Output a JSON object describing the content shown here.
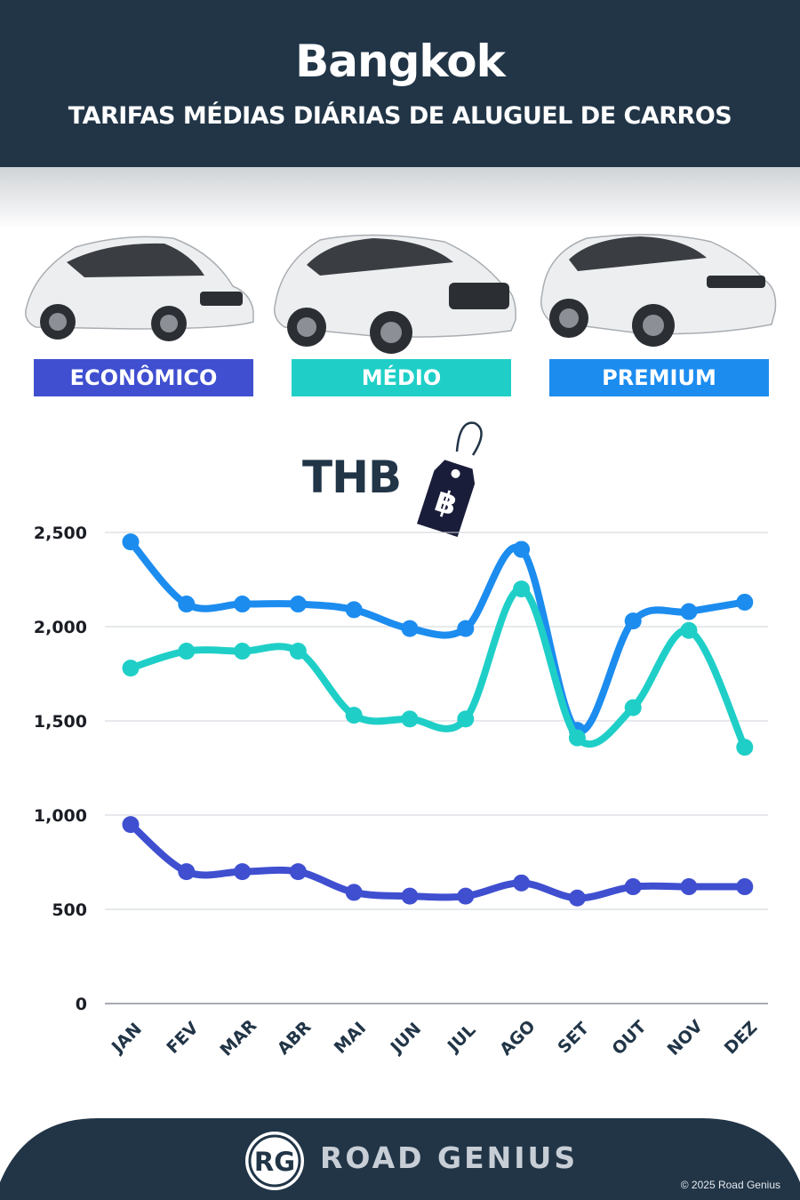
{
  "header": {
    "city": "Bangkok",
    "subtitle": "TARIFAS MÉDIAS DIÁRIAS DE ALUGUEL DE CARROS"
  },
  "categories": [
    {
      "label": "ECONÔMICO",
      "color": "#3f4fd0"
    },
    {
      "label": "MÉDIO",
      "color": "#1fcfc7"
    },
    {
      "label": "PREMIUM",
      "color": "#1c8cef"
    }
  ],
  "currency": {
    "label": "THB",
    "symbol": "฿"
  },
  "chart_data": {
    "type": "line",
    "categories": [
      "JAN",
      "FEV",
      "MAR",
      "ABR",
      "MAI",
      "JUN",
      "JUL",
      "AGO",
      "SET",
      "OUT",
      "NOV",
      "DEZ"
    ],
    "series": [
      {
        "name": "PREMIUM",
        "color": "#1c8cef",
        "values": [
          2450,
          2120,
          2120,
          2120,
          2090,
          1990,
          1990,
          2410,
          1450,
          2030,
          2080,
          2130
        ]
      },
      {
        "name": "MÉDIO",
        "color": "#1fcfc7",
        "values": [
          1780,
          1870,
          1870,
          1870,
          1530,
          1510,
          1510,
          2200,
          1410,
          1570,
          1980,
          1360
        ]
      },
      {
        "name": "ECONÔMICO",
        "color": "#3f4fd0",
        "values": [
          950,
          700,
          700,
          700,
          590,
          570,
          570,
          640,
          560,
          620,
          620,
          620
        ]
      }
    ],
    "y_ticks": [
      "0",
      "500",
      "1,000",
      "1,500",
      "2,000",
      "2,500"
    ],
    "ylim": [
      0,
      2500
    ],
    "grid": true
  },
  "footer": {
    "logo": "RG",
    "brand": "ROAD GENIUS",
    "copyright": "© 2025 Road Genius"
  }
}
